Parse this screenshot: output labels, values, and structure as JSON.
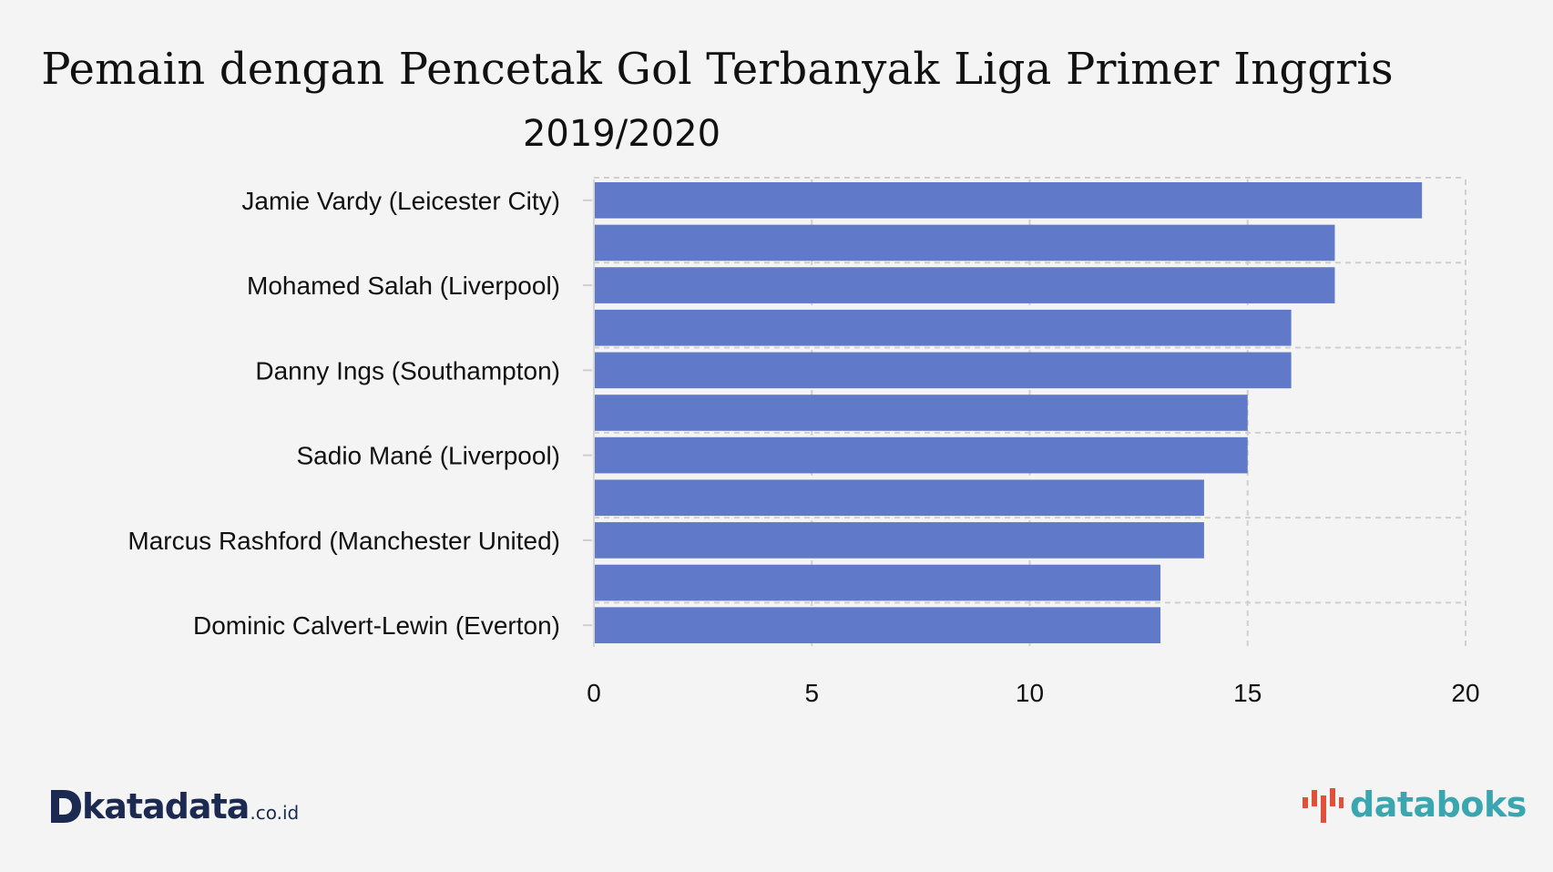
{
  "chart_data": {
    "type": "bar",
    "orientation": "horizontal",
    "title": "Pemain dengan Pencetak Gol Terbanyak Liga Primer Inggris",
    "subtitle": "2019/2020",
    "categories": [
      "Jamie Vardy (Leicester City)",
      "",
      "Mohamed Salah (Liverpool)",
      "",
      "Danny Ings (Southampton)",
      "",
      "Sadio Mané (Liverpool)",
      "",
      "Marcus Rashford (Manchester United)",
      "",
      "Dominic Calvert-Lewin (Everton)"
    ],
    "values": [
      19,
      17,
      17,
      16,
      16,
      15,
      15,
      14,
      14,
      13,
      13
    ],
    "xlim": [
      0,
      20
    ],
    "xticks": [
      "0",
      "5",
      "10",
      "15",
      "20"
    ],
    "xlabel": "",
    "ylabel": "",
    "grid": true,
    "bar_color": "#6079c8"
  },
  "branding": {
    "left_logo_word": "katadata",
    "left_logo_suffix": ".co.id",
    "right_logo_word": "databoks"
  }
}
